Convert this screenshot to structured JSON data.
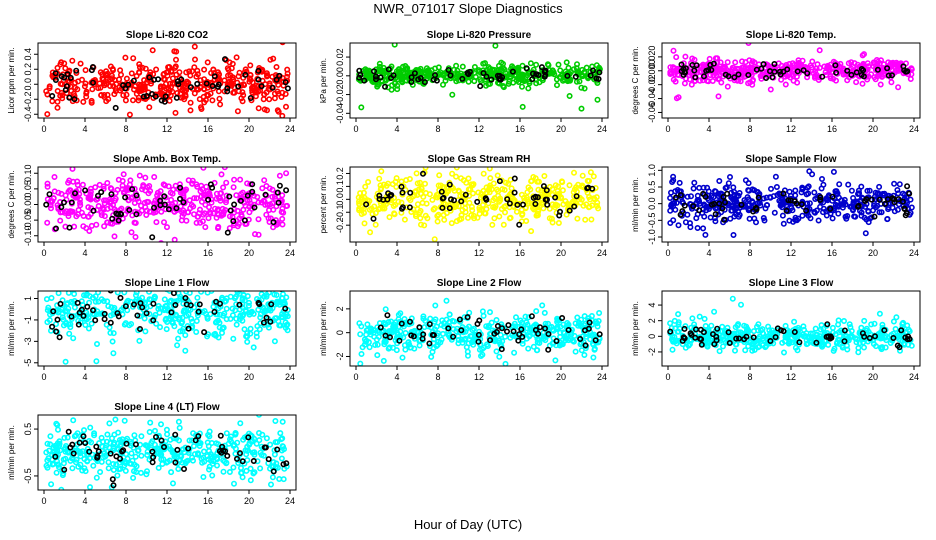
{
  "figure": {
    "title": "NWR_071017  Slope Diagnostics",
    "xlabel": "Hour of Day (UTC)"
  },
  "chart_data": [
    {
      "type": "scatter",
      "title": "Slope Li-820 CO2",
      "ylabel": "Licor ppm per min.",
      "color": "#ff0000",
      "xlim": [
        0,
        24
      ],
      "xticks": [
        0,
        4,
        8,
        12,
        16,
        20,
        24
      ],
      "ylim": [
        -0.45,
        0.55
      ],
      "yticks": [
        -0.4,
        -0.2,
        0.0,
        0.2,
        0.4
      ],
      "ytick_labels": [
        "-0.4",
        "-0.2",
        "0.0",
        "0.2",
        "0.4"
      ],
      "spread": 0.15,
      "outlier": 0.55,
      "seed": 11
    },
    {
      "type": "scatter",
      "title": "Slope Li-820 Pressure",
      "ylabel": "kPa per min.",
      "color": "#00cc00",
      "xlim": [
        0,
        24
      ],
      "xticks": [
        0,
        4,
        8,
        12,
        16,
        20,
        24
      ],
      "ylim": [
        -0.045,
        0.035
      ],
      "yticks": [
        -0.04,
        -0.02,
        0.0,
        0.02
      ],
      "ytick_labels": [
        "-0.04",
        "-0.02",
        "0.00",
        "0.02"
      ],
      "spread": 0.005,
      "outlier": 0.035,
      "seed": 22
    },
    {
      "type": "scatter",
      "title": "Slope Li-820 Temp.",
      "ylabel": "degrees C per min.",
      "color": "#ff00ff",
      "xlim": [
        0,
        24
      ],
      "xticks": [
        0,
        4,
        8,
        12,
        16,
        20,
        24
      ],
      "ylim": [
        -0.068,
        0.04
      ],
      "yticks": [
        -0.06,
        -0.04,
        -0.02,
        0.0,
        0.02
      ],
      "ytick_labels": [
        "-0.06",
        "-0.04",
        "-0.02",
        "0.000",
        "0.020"
      ],
      "spread": 0.008,
      "outlier": 0.04,
      "seed": 33
    },
    {
      "type": "scatter",
      "title": "Slope Amb. Box Temp.",
      "ylabel": "degrees C per min.",
      "color": "#ff00ff",
      "xlim": [
        0,
        24
      ],
      "xticks": [
        0,
        4,
        8,
        12,
        16,
        20,
        24
      ],
      "ylim": [
        -0.12,
        0.12
      ],
      "yticks": [
        -0.1,
        -0.05,
        0.0,
        0.05,
        0.1
      ],
      "ytick_labels": [
        "-0.10",
        "-0.05",
        "0.00",
        "0.05",
        "0.10"
      ],
      "spread": 0.045,
      "outlier": 0.11,
      "seed": 44
    },
    {
      "type": "scatter",
      "title": "Slope Gas Stream RH",
      "ylabel": "percent per min.",
      "color": "#ffff00",
      "xlim": [
        0,
        24
      ],
      "xticks": [
        0,
        4,
        8,
        12,
        16,
        20,
        24
      ],
      "ylim": [
        -0.33,
        0.25
      ],
      "yticks": [
        -0.2,
        -0.1,
        0.0,
        0.1,
        0.2
      ],
      "ytick_labels": [
        "-0.2",
        "-0.1",
        "0.0",
        "0.1",
        "0.2"
      ],
      "spread": 0.09,
      "outlier": 0.3,
      "seed": 55
    },
    {
      "type": "scatter",
      "title": "Slope Sample Flow",
      "ylabel": "ml/min per min.",
      "color": "#0000cc",
      "xlim": [
        0,
        24
      ],
      "xticks": [
        0,
        4,
        8,
        12,
        16,
        20,
        24
      ],
      "ylim": [
        -1.15,
        1.1
      ],
      "yticks": [
        -1.0,
        -0.5,
        0.0,
        0.5,
        1.0
      ],
      "ytick_labels": [
        "-1.0",
        "-0.5",
        "0.0",
        "0.5",
        "1.0"
      ],
      "spread": 0.3,
      "outlier": 1.0,
      "seed": 66
    },
    {
      "type": "scatter",
      "title": "Slope Line 1 Flow",
      "ylabel": "ml/min per min.",
      "color": "#00ffff",
      "xlim": [
        0,
        24
      ],
      "xticks": [
        0,
        4,
        8,
        12,
        16,
        20,
        24
      ],
      "ylim": [
        -5.3,
        1.7
      ],
      "yticks": [
        -5,
        -3,
        -1,
        1
      ],
      "ytick_labels": [
        "-5",
        "-3",
        "-1",
        "1"
      ],
      "spread": 1.4,
      "outlier": 4.8,
      "seed": 77
    },
    {
      "type": "scatter",
      "title": "Slope Line 2 Flow",
      "ylabel": "ml/min per min.",
      "color": "#00ffff",
      "xlim": [
        0,
        24
      ],
      "xticks": [
        0,
        4,
        8,
        12,
        16,
        20,
        24
      ],
      "ylim": [
        -2.8,
        3.5
      ],
      "yticks": [
        -2,
        0,
        2
      ],
      "ytick_labels": [
        "-2",
        "0",
        "2"
      ],
      "spread": 0.8,
      "outlier": 3.0,
      "seed": 88
    },
    {
      "type": "scatter",
      "title": "Slope Line 3 Flow",
      "ylabel": "ml/min per min.",
      "color": "#00ffff",
      "xlim": [
        0,
        24
      ],
      "xticks": [
        0,
        4,
        8,
        12,
        16,
        20,
        24
      ],
      "ylim": [
        -3.8,
        5.8
      ],
      "yticks": [
        -2,
        0,
        2,
        4
      ],
      "ytick_labels": [
        "-2",
        "0",
        "2",
        "4"
      ],
      "spread": 0.8,
      "outlier": 5.0,
      "seed": 99
    },
    {
      "type": "scatter",
      "title": "Slope Line 4 (LT) Flow",
      "ylabel": "ml/min per min.",
      "color": "#00ffff",
      "xlim": [
        0,
        24
      ],
      "xticks": [
        0,
        4,
        8,
        12,
        16,
        20,
        24
      ],
      "ylim": [
        -0.8,
        0.8
      ],
      "yticks": [
        -0.5,
        0.5
      ],
      "ytick_labels": [
        "-0.5",
        "0.5"
      ],
      "spread": 0.28,
      "outlier": 0.75,
      "seed": 111
    }
  ]
}
